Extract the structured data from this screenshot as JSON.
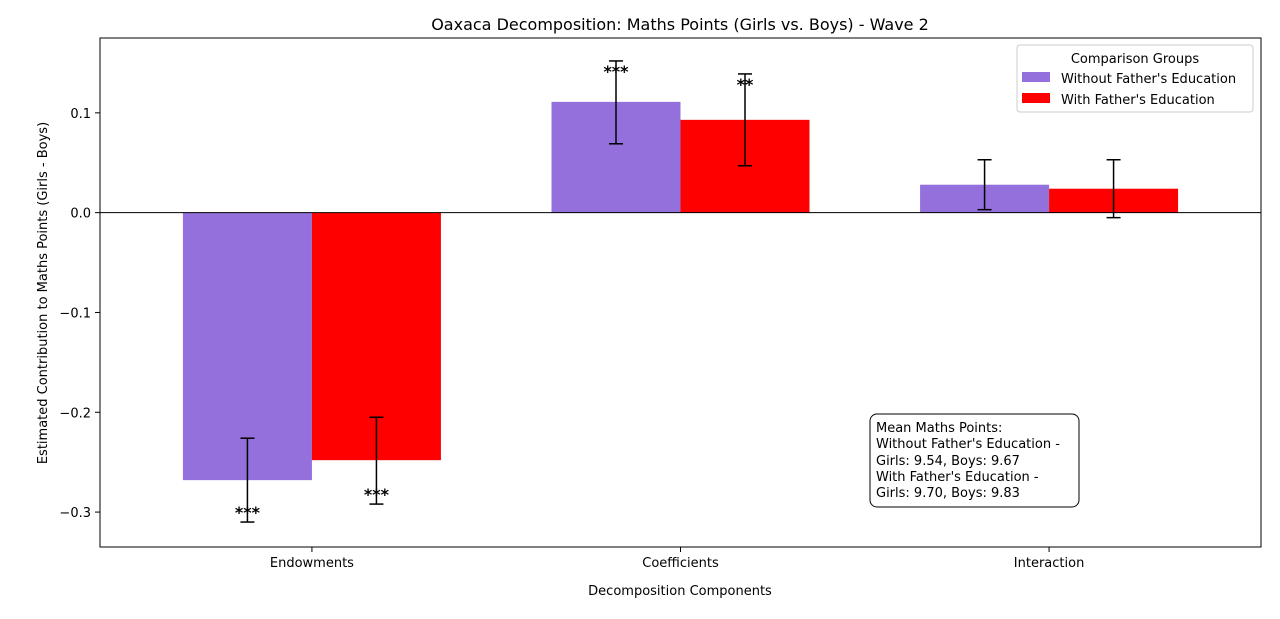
{
  "chart_data": {
    "type": "bar",
    "title": "Oaxaca Decomposition: Maths Points (Girls vs. Boys) - Wave 2",
    "xlabel": "Decomposition Components",
    "ylabel": "Estimated Contribution to Maths Points (Girls - Boys)",
    "categories": [
      "Endowments",
      "Coefficients",
      "Interaction"
    ],
    "ylim": [
      -0.335,
      0.175
    ],
    "yticks": [
      -0.3,
      -0.2,
      -0.1,
      0.0,
      0.1
    ],
    "ytick_labels": [
      "−0.3",
      "−0.2",
      "−0.1",
      "0.0",
      "0.1"
    ],
    "grid": false,
    "zero_line": true,
    "legend": {
      "title": "Comparison Groups",
      "position": "top-right"
    },
    "series": [
      {
        "name": "Without Father's Education",
        "color": "#9370DB",
        "values": [
          -0.268,
          0.111,
          0.028
        ],
        "err_low": [
          -0.31,
          0.069,
          0.003
        ],
        "err_high": [
          -0.226,
          0.152,
          0.053
        ],
        "significance": [
          "***",
          "***",
          ""
        ]
      },
      {
        "name": "With Father's Education",
        "color": "#FF0000",
        "values": [
          -0.248,
          0.093,
          0.024
        ],
        "err_low": [
          -0.292,
          0.047,
          -0.005
        ],
        "err_high": [
          -0.205,
          0.139,
          0.053
        ],
        "significance": [
          "***",
          "**",
          ""
        ]
      }
    ],
    "annotation": {
      "lines": [
        "Mean Maths Points:",
        "Without Father's Education -",
        "Girls: 9.54, Boys: 9.67",
        "With Father's Education -",
        "Girls: 9.70, Boys: 9.83"
      ]
    }
  }
}
